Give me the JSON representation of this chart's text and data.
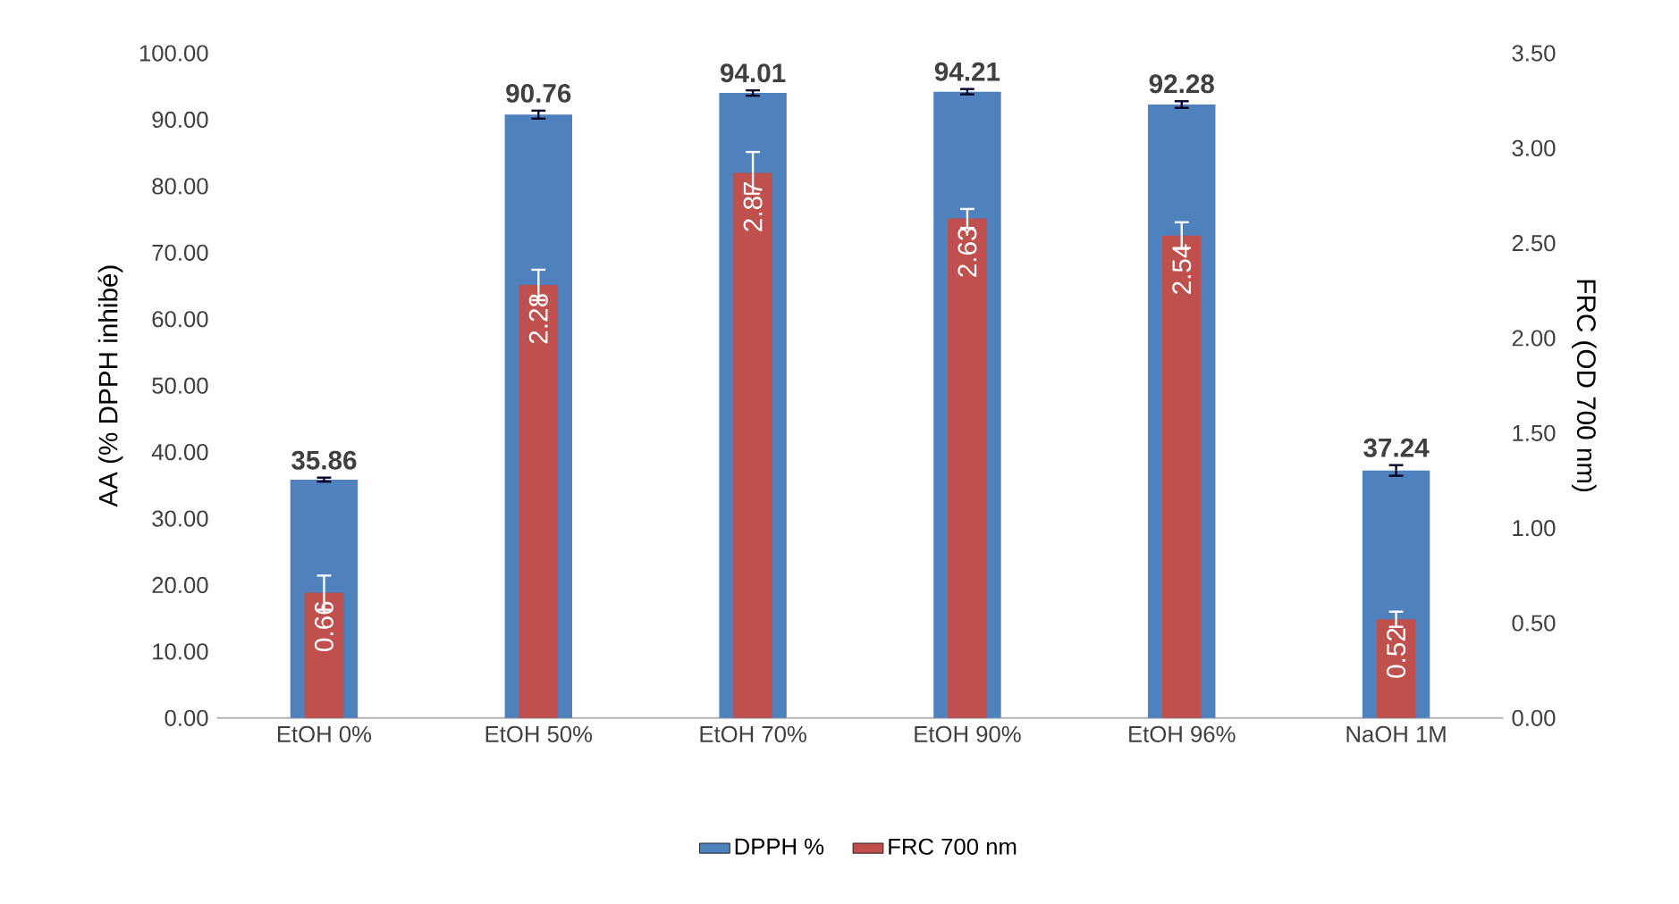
{
  "chart_data": {
    "type": "bar",
    "xlabel": null,
    "ylabel": "AA (% DPPH inhibé)",
    "y2label": "FRC (OD 700 nm)",
    "categories": [
      "EtOH 0%",
      "EtOH 50%",
      "EtOH 70%",
      "EtOH 90%",
      "EtOH 96%",
      "NaOH 1M"
    ],
    "series": [
      {
        "name": "DPPH %",
        "color": "#4f81bd",
        "values": [
          35.86,
          90.76,
          94.01,
          94.21,
          92.28,
          37.24
        ],
        "errors": [
          0.3,
          0.6,
          0.4,
          0.4,
          0.5,
          0.8
        ]
      },
      {
        "name": "FRC 700 nm",
        "color": "#c0504d",
        "axis": "y2",
        "values": [
          0.66,
          2.28,
          2.87,
          2.63,
          2.54,
          0.52
        ],
        "errors": [
          0.09,
          0.08,
          0.11,
          0.05,
          0.07,
          0.04
        ]
      }
    ],
    "ylim": [
      0,
      100
    ],
    "yticks": [
      {
        "value": 0,
        "label": "0.00"
      },
      {
        "value": 10,
        "label": "10.00"
      },
      {
        "value": 20,
        "label": "20.00"
      },
      {
        "value": 30,
        "label": "30.00"
      },
      {
        "value": 40,
        "label": "40.00"
      },
      {
        "value": 50,
        "label": "50.00"
      },
      {
        "value": 60,
        "label": "60.00"
      },
      {
        "value": 70,
        "label": "70.00"
      },
      {
        "value": 80,
        "label": "80.00"
      },
      {
        "value": 90,
        "label": "90.00"
      },
      {
        "value": 100,
        "label": "100.00"
      }
    ],
    "y2lim": [
      0,
      3.5
    ],
    "y2ticks": [
      {
        "value": 0,
        "label": "0.00"
      },
      {
        "value": 0.5,
        "label": "0.50"
      },
      {
        "value": 1,
        "label": "1.00"
      },
      {
        "value": 1.5,
        "label": "1.50"
      },
      {
        "value": 2,
        "label": "2.00"
      },
      {
        "value": 2.5,
        "label": "2.50"
      },
      {
        "value": 3,
        "label": "3.00"
      },
      {
        "value": 3.5,
        "label": "3.50"
      }
    ],
    "data_labels": true,
    "legend": "bottom"
  }
}
